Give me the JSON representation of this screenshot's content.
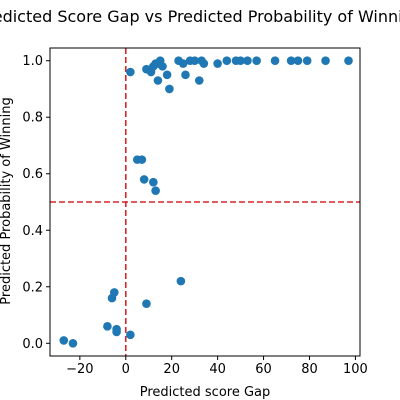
{
  "chart_data": {
    "type": "scatter",
    "title": "Predicted Score Gap vs Predicted Probability of Winning",
    "xlabel": "Predicted score Gap",
    "ylabel": "Predicted Probability of Winning",
    "xlim": [
      -33,
      102
    ],
    "ylim": [
      -0.045,
      1.045
    ],
    "xticks": [
      -20,
      0,
      20,
      40,
      60,
      80,
      100
    ],
    "yticks": [
      0.0,
      0.2,
      0.4,
      0.6,
      0.8,
      1.0
    ],
    "xtick_labels": [
      "−20",
      "0",
      "20",
      "40",
      "60",
      "80",
      "100"
    ],
    "ytick_labels": [
      "0.0",
      "0.2",
      "0.4",
      "0.6",
      "0.8",
      "1.0"
    ],
    "grid": false,
    "reference_lines": [
      {
        "orientation": "vertical",
        "value": 0,
        "color": "#d62728",
        "style": "dashed"
      },
      {
        "orientation": "horizontal",
        "value": 0.5,
        "color": "#d62728",
        "style": "dashed"
      }
    ],
    "marker_color": "#1f77b4",
    "points": [
      {
        "x": -27,
        "y": 0.01
      },
      {
        "x": -23,
        "y": 0.0
      },
      {
        "x": -8,
        "y": 0.06
      },
      {
        "x": -4,
        "y": 0.05
      },
      {
        "x": -4,
        "y": 0.04
      },
      {
        "x": 2,
        "y": 0.03
      },
      {
        "x": -6,
        "y": 0.16
      },
      {
        "x": -5,
        "y": 0.18
      },
      {
        "x": 9,
        "y": 0.14
      },
      {
        "x": 24,
        "y": 0.22
      },
      {
        "x": 5,
        "y": 0.65
      },
      {
        "x": 7,
        "y": 0.65
      },
      {
        "x": 8,
        "y": 0.58
      },
      {
        "x": 12,
        "y": 0.57
      },
      {
        "x": 13,
        "y": 0.54
      },
      {
        "x": 2,
        "y": 0.96
      },
      {
        "x": 9,
        "y": 0.97
      },
      {
        "x": 11,
        "y": 0.96
      },
      {
        "x": 12,
        "y": 0.98
      },
      {
        "x": 13,
        "y": 0.99
      },
      {
        "x": 14,
        "y": 0.99
      },
      {
        "x": 15,
        "y": 1.0
      },
      {
        "x": 16,
        "y": 0.98
      },
      {
        "x": 14,
        "y": 0.93
      },
      {
        "x": 18,
        "y": 0.95
      },
      {
        "x": 19,
        "y": 0.9
      },
      {
        "x": 23,
        "y": 1.0
      },
      {
        "x": 25,
        "y": 0.99
      },
      {
        "x": 26,
        "y": 0.95
      },
      {
        "x": 28,
        "y": 1.0
      },
      {
        "x": 30,
        "y": 1.0
      },
      {
        "x": 32,
        "y": 0.93
      },
      {
        "x": 33,
        "y": 1.0
      },
      {
        "x": 34,
        "y": 0.99
      },
      {
        "x": 40,
        "y": 0.99
      },
      {
        "x": 44,
        "y": 1.0
      },
      {
        "x": 48,
        "y": 1.0
      },
      {
        "x": 50,
        "y": 1.0
      },
      {
        "x": 53,
        "y": 1.0
      },
      {
        "x": 57,
        "y": 1.0
      },
      {
        "x": 65,
        "y": 1.0
      },
      {
        "x": 72,
        "y": 1.0
      },
      {
        "x": 75,
        "y": 1.0
      },
      {
        "x": 79,
        "y": 1.0
      },
      {
        "x": 87,
        "y": 1.0
      },
      {
        "x": 97,
        "y": 1.0
      }
    ]
  }
}
